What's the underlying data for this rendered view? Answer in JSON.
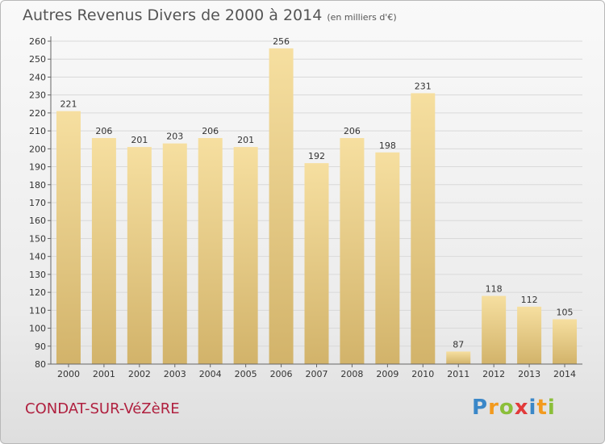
{
  "header": {
    "title": "Autres Revenus Divers de 2000 à 2014",
    "unit": "(en milliers d'€)"
  },
  "footer": {
    "place": "CONDAT-SUR-VéZèRE",
    "brand_letters": [
      "P",
      "r",
      "o",
      "x",
      "i",
      "t",
      "i"
    ]
  },
  "colors": {
    "bar_light": "#f6dfa0",
    "bar_dark": "#d2b36a",
    "axis": "#666666",
    "grid": "#d9d9d9",
    "place": "#b0203f",
    "brand": [
      "#3a87c8",
      "#f39a1e",
      "#8bbf3a",
      "#e23a3a",
      "#3a87c8",
      "#f39a1e",
      "#8bbf3a"
    ]
  },
  "chart_data": {
    "type": "bar",
    "categories": [
      "2000",
      "2001",
      "2002",
      "2003",
      "2004",
      "2005",
      "2006",
      "2007",
      "2008",
      "2009",
      "2010",
      "2011",
      "2012",
      "2013",
      "2014"
    ],
    "values": [
      221,
      206,
      201,
      203,
      206,
      201,
      256,
      192,
      206,
      198,
      231,
      87,
      118,
      112,
      105
    ],
    "ylim": [
      80,
      260
    ],
    "yticks": [
      80,
      90,
      100,
      110,
      120,
      130,
      140,
      150,
      160,
      170,
      180,
      190,
      200,
      210,
      220,
      230,
      240,
      250,
      260
    ],
    "grid": true,
    "legend": "none"
  }
}
